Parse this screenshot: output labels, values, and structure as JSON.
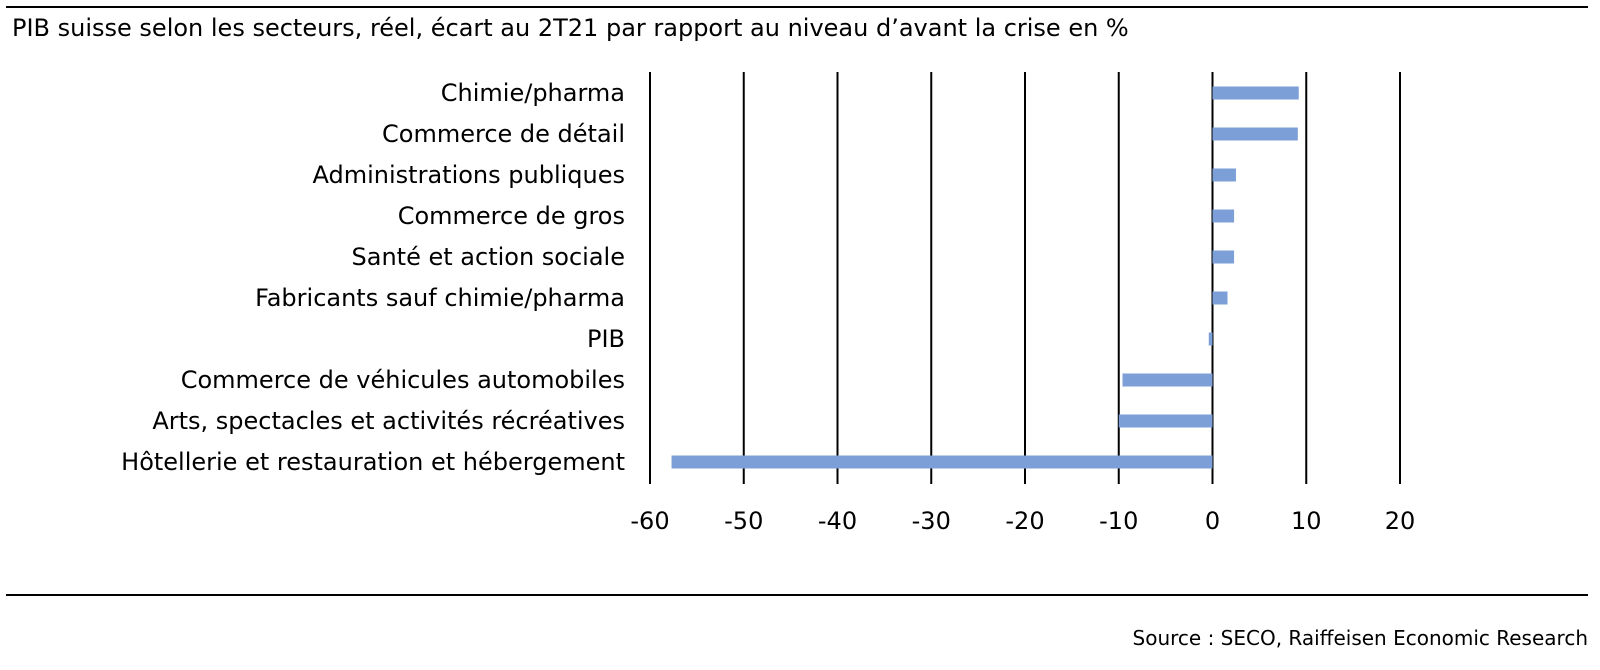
{
  "chart_data": {
    "type": "bar",
    "orientation": "horizontal",
    "title": "PIB suisse selon les secteurs, réel, écart au 2T21 par rapport au niveau d’avant la crise en %",
    "source": "Source : SECO, Raiffeisen Economic Research",
    "categories": [
      "Chimie/pharma",
      "Commerce de détail",
      "Administrations publiques",
      "Commerce de gros",
      "Santé et action sociale",
      "Fabricants sauf chimie/pharma",
      "PIB",
      "Commerce de véhicules automobiles",
      "Arts, spectacles et activités récréatives",
      "Hôtellerie et restauration et hébergement"
    ],
    "values": [
      9.2,
      9.1,
      2.5,
      2.3,
      2.3,
      1.6,
      -0.4,
      -9.6,
      -10.0,
      -57.7
    ],
    "xlim": [
      -60,
      20
    ],
    "xticks": [
      -60,
      -50,
      -40,
      -30,
      -20,
      -10,
      0,
      10,
      20
    ],
    "xtick_labels": [
      "-60",
      "-50",
      "-40",
      "-30",
      "-20",
      "-10",
      "0",
      "10",
      "20"
    ],
    "grid": "vertical",
    "bar_color": "#7b9fd6",
    "grid_color": "#000000"
  }
}
